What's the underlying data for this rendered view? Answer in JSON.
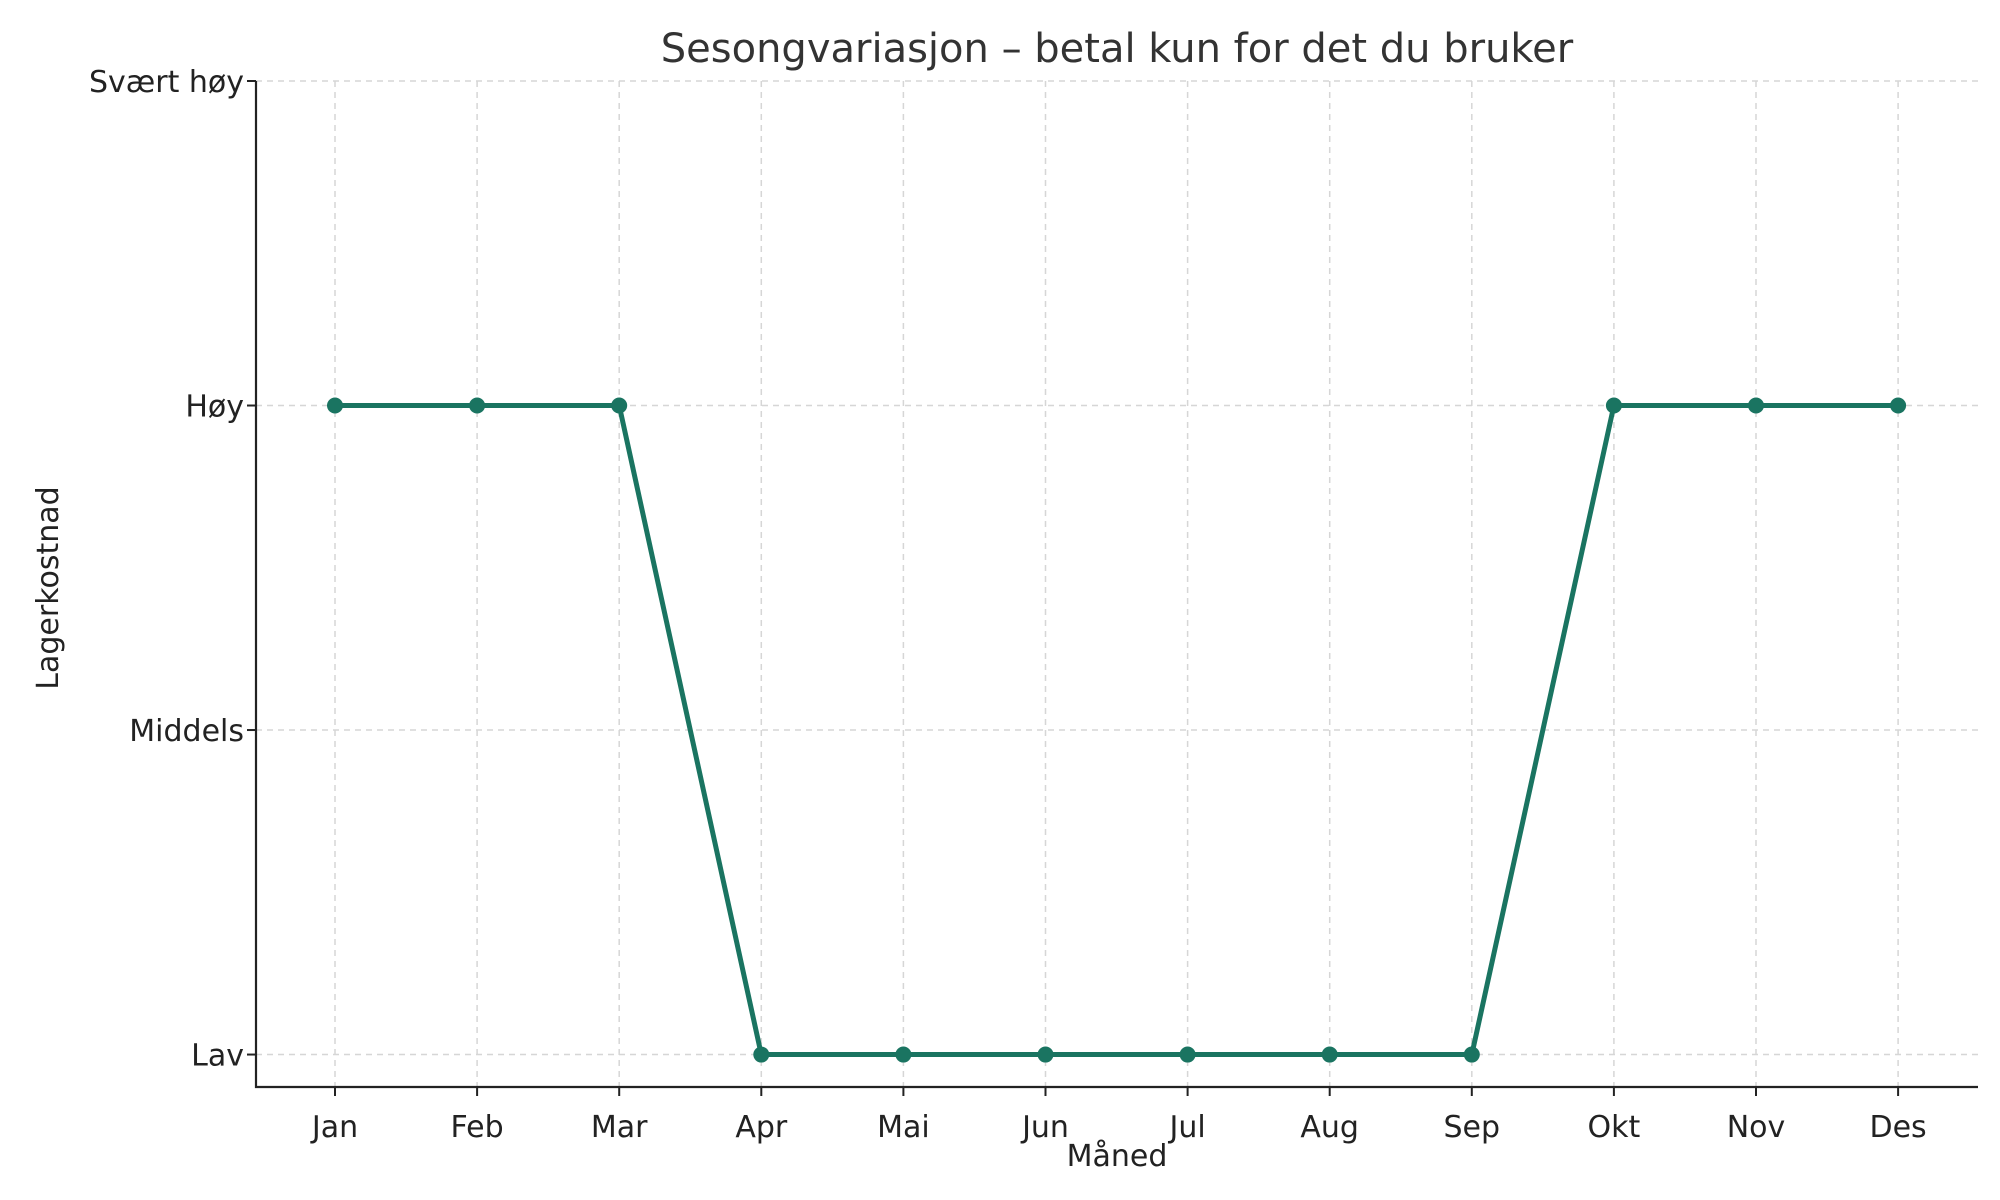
{
  "chart_data": {
    "type": "line",
    "title": "Sesongvariasjon – betal kun for det du bruker",
    "xlabel": "Måned",
    "ylabel": "Lagerkostnad",
    "categories": [
      "Jan",
      "Feb",
      "Mar",
      "Apr",
      "Mai",
      "Jun",
      "Jul",
      "Aug",
      "Sep",
      "Okt",
      "Nov",
      "Des"
    ],
    "y_tick_labels": [
      "Lav",
      "Middels",
      "Høy",
      "Svært høy"
    ],
    "y_tick_values": [
      1,
      2,
      3,
      4
    ],
    "ylim": [
      0.9,
      4
    ],
    "series": [
      {
        "values": [
          3,
          3,
          3,
          1,
          1,
          1,
          1,
          1,
          1,
          3,
          3,
          3
        ],
        "color": "#1a7461"
      }
    ],
    "grid": true,
    "markers": "circle"
  }
}
